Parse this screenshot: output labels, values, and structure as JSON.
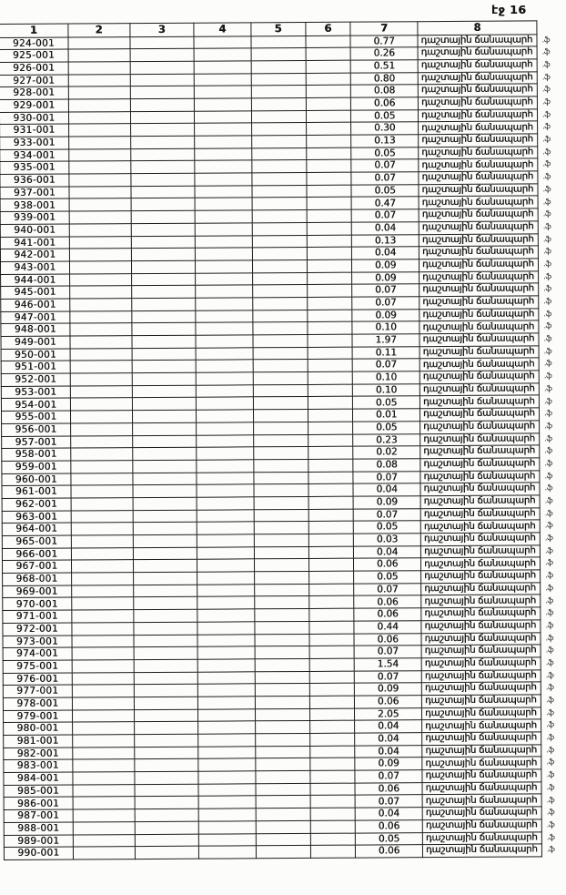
{
  "page": {
    "label": "էջ 16"
  },
  "table": {
    "headers": [
      "1",
      "2",
      "3",
      "4",
      "5",
      "6",
      "7",
      "8"
    ],
    "margin_mark": ".ֆ",
    "rows": [
      {
        "c1": "924-001",
        "c7": "0.77",
        "c8": "դաշտային ճանապարհ"
      },
      {
        "c1": "925-001",
        "c7": "0.26",
        "c8": "դաշտային ճանապարհ"
      },
      {
        "c1": "926-001",
        "c7": "0.51",
        "c8": "դաշտային ճանապարհ"
      },
      {
        "c1": "927-001",
        "c7": "0.80",
        "c8": "դաշտային ճանապարհ"
      },
      {
        "c1": "928-001",
        "c7": "0.08",
        "c8": "դաշտային ճանապարհ"
      },
      {
        "c1": "929-001",
        "c7": "0.06",
        "c8": "դաշտային ճանապարհ"
      },
      {
        "c1": "930-001",
        "c7": "0.05",
        "c8": "դաշտային ճանապարհ"
      },
      {
        "c1": "931-001",
        "c7": "0.30",
        "c8": "դաշտային ճանապարհ"
      },
      {
        "c1": "933-001",
        "c7": "0.13",
        "c8": "դաշտային ճանապարհ"
      },
      {
        "c1": "934-001",
        "c7": "0.05",
        "c8": "դաշտային ճանապարհ"
      },
      {
        "c1": "935-001",
        "c7": "0.07",
        "c8": "դաշտային ճանապարհ"
      },
      {
        "c1": "936-001",
        "c7": "0.07",
        "c8": "դաշտային ճանապարհ"
      },
      {
        "c1": "937-001",
        "c7": "0.05",
        "c8": "դաշտային ճանապարհ"
      },
      {
        "c1": "938-001",
        "c7": "0.47",
        "c8": "դաշտային ճանապարհ"
      },
      {
        "c1": "939-001",
        "c7": "0.07",
        "c8": "դաշտային ճանապարհ"
      },
      {
        "c1": "940-001",
        "c7": "0.04",
        "c8": "դաշտային ճանապարհ"
      },
      {
        "c1": "941-001",
        "c7": "0.13",
        "c8": "դաշտային ճանապարհ"
      },
      {
        "c1": "942-001",
        "c7": "0.04",
        "c8": "դաշտային ճանապարհ"
      },
      {
        "c1": "943-001",
        "c7": "0.09",
        "c8": "դաշտային ճանապարհ"
      },
      {
        "c1": "944-001",
        "c7": "0.09",
        "c8": "դաշտային ճանապարհ"
      },
      {
        "c1": "945-001",
        "c7": "0.07",
        "c8": "դաշտային ճանապարհ"
      },
      {
        "c1": "946-001",
        "c7": "0.07",
        "c8": "դաշտային ճանապարհ"
      },
      {
        "c1": "947-001",
        "c7": "0.09",
        "c8": "դաշտային ճանապարհ"
      },
      {
        "c1": "948-001",
        "c7": "0.10",
        "c8": "դաշտային ճանապարհ"
      },
      {
        "c1": "949-001",
        "c7": "1.97",
        "c8": "դաշտային ճանապարհ"
      },
      {
        "c1": "950-001",
        "c7": "0.11",
        "c8": "դաշտային ճանապարհ"
      },
      {
        "c1": "951-001",
        "c7": "0.07",
        "c8": "դաշտային ճանապարհ"
      },
      {
        "c1": "952-001",
        "c7": "0.10",
        "c8": "դաշտային ճանապարհ"
      },
      {
        "c1": "953-001",
        "c7": "0.10",
        "c8": "դաշտային ճանապարհ"
      },
      {
        "c1": "954-001",
        "c7": "0.05",
        "c8": "դաշտային ճանապարհ"
      },
      {
        "c1": "955-001",
        "c7": "0.01",
        "c8": "դաշտային ճանապարհ"
      },
      {
        "c1": "956-001",
        "c7": "0.05",
        "c8": "դաշտային ճանապարհ"
      },
      {
        "c1": "957-001",
        "c7": "0.23",
        "c8": "դաշտային ճանապարհ"
      },
      {
        "c1": "958-001",
        "c7": "0.02",
        "c8": "դաշտային ճանապարհ"
      },
      {
        "c1": "959-001",
        "c7": "0.08",
        "c8": "դաշտային ճանապարհ"
      },
      {
        "c1": "960-001",
        "c7": "0.07",
        "c8": "դաշտային ճանապարհ"
      },
      {
        "c1": "961-001",
        "c7": "0.04",
        "c8": "դաշտային ճանապարհ"
      },
      {
        "c1": "962-001",
        "c7": "0.09",
        "c8": "դաշտային ճանապարհ"
      },
      {
        "c1": "963-001",
        "c7": "0.07",
        "c8": "դաշտային ճանապարհ"
      },
      {
        "c1": "964-001",
        "c7": "0.05",
        "c8": "դաշտային ճանապարհ"
      },
      {
        "c1": "965-001",
        "c7": "0.03",
        "c8": "դաշտային ճանապարհ"
      },
      {
        "c1": "966-001",
        "c7": "0.04",
        "c8": "դաշտային ճանապարհ"
      },
      {
        "c1": "967-001",
        "c7": "0.06",
        "c8": "դաշտային ճանապարհ"
      },
      {
        "c1": "968-001",
        "c7": "0.05",
        "c8": "դաշտային ճանապարհ"
      },
      {
        "c1": "969-001",
        "c7": "0.07",
        "c8": "դաշտային ճանապարհ"
      },
      {
        "c1": "970-001",
        "c7": "0.06",
        "c8": "դաշտային ճանապարհ"
      },
      {
        "c1": "971-001",
        "c7": "0.06",
        "c8": "դաշտային ճանապարհ"
      },
      {
        "c1": "972-001",
        "c7": "0.44",
        "c8": "դաշտային ճանապարհ"
      },
      {
        "c1": "973-001",
        "c7": "0.06",
        "c8": "դաշտային ճանապարհ"
      },
      {
        "c1": "974-001",
        "c7": "0.07",
        "c8": "դաշտային ճանապարհ"
      },
      {
        "c1": "975-001",
        "c7": "1.54",
        "c8": "դաշտային ճանապարհ"
      },
      {
        "c1": "976-001",
        "c7": "0.07",
        "c8": "դաշտային ճանապարհ"
      },
      {
        "c1": "977-001",
        "c7": "0.09",
        "c8": "դաշտային ճանապարհ"
      },
      {
        "c1": "978-001",
        "c7": "0.06",
        "c8": "դաշտային ճանապարհ"
      },
      {
        "c1": "979-001",
        "c7": "2.05",
        "c8": "դաշտային ճանապարհ"
      },
      {
        "c1": "980-001",
        "c7": "0.04",
        "c8": "դաշտային ճանապարհ"
      },
      {
        "c1": "981-001",
        "c7": "0.04",
        "c8": "դաշտային ճանապարհ"
      },
      {
        "c1": "982-001",
        "c7": "0.04",
        "c8": "դաշտային ճանապարհ"
      },
      {
        "c1": "983-001",
        "c7": "0.09",
        "c8": "դաշտային ճանապարհ"
      },
      {
        "c1": "984-001",
        "c7": "0.07",
        "c8": "դաշտային ճանապարհ"
      },
      {
        "c1": "985-001",
        "c7": "0.06",
        "c8": "դաշտային ճանապարհ"
      },
      {
        "c1": "986-001",
        "c7": "0.07",
        "c8": "դաշտային ճանապարհ"
      },
      {
        "c1": "987-001",
        "c7": "0.04",
        "c8": "դաշտային ճանապարհ"
      },
      {
        "c1": "988-001",
        "c7": "0.06",
        "c8": "դաշտային ճանապարհ"
      },
      {
        "c1": "989-001",
        "c7": "0.05",
        "c8": "դաշտային ճանապարհ"
      },
      {
        "c1": "990-001",
        "c7": "0.06",
        "c8": "դաշտային ճանապարհ"
      }
    ]
  }
}
